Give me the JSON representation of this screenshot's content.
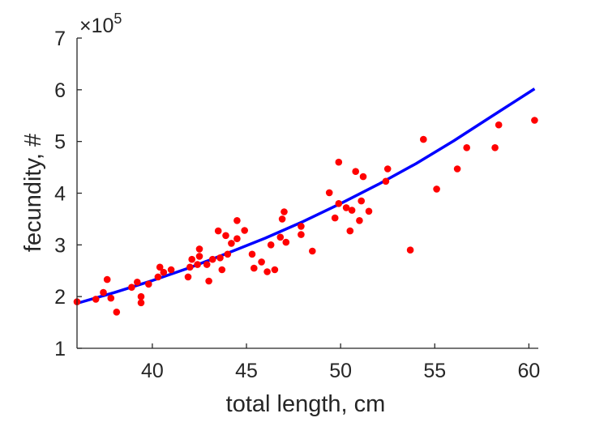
{
  "chart_data": {
    "type": "scatter",
    "title": "",
    "xlabel": "total length, cm",
    "ylabel": "fecundity, #",
    "xlim": [
      36,
      60.5
    ],
    "ylim": [
      1,
      7
    ],
    "xticks": [
      40,
      45,
      50,
      55,
      60
    ],
    "yticks": [
      1,
      2,
      3,
      4,
      5,
      6,
      7
    ],
    "y_multiplier": "×10",
    "y_multiplier_exponent": "5",
    "grid": false,
    "series": [
      {
        "kind": "scatter",
        "color": "#ff0000",
        "points": [
          [
            36.0,
            1.9
          ],
          [
            37.0,
            1.95
          ],
          [
            37.4,
            2.08
          ],
          [
            37.6,
            2.33
          ],
          [
            37.8,
            1.97
          ],
          [
            38.1,
            1.7
          ],
          [
            38.9,
            2.18
          ],
          [
            39.2,
            2.28
          ],
          [
            39.4,
            2.0
          ],
          [
            39.4,
            1.88
          ],
          [
            39.8,
            2.24
          ],
          [
            40.3,
            2.38
          ],
          [
            40.4,
            2.57
          ],
          [
            40.6,
            2.47
          ],
          [
            41.0,
            2.52
          ],
          [
            41.9,
            2.38
          ],
          [
            42.0,
            2.57
          ],
          [
            42.1,
            2.72
          ],
          [
            42.4,
            2.62
          ],
          [
            42.5,
            2.78
          ],
          [
            42.5,
            2.92
          ],
          [
            42.9,
            2.62
          ],
          [
            43.0,
            2.3
          ],
          [
            43.2,
            2.72
          ],
          [
            43.5,
            3.27
          ],
          [
            43.6,
            2.75
          ],
          [
            43.7,
            2.52
          ],
          [
            43.9,
            3.18
          ],
          [
            44.0,
            2.82
          ],
          [
            44.2,
            3.03
          ],
          [
            44.5,
            3.47
          ],
          [
            44.5,
            3.12
          ],
          [
            44.9,
            3.28
          ],
          [
            45.3,
            2.82
          ],
          [
            45.4,
            2.55
          ],
          [
            45.8,
            2.67
          ],
          [
            46.1,
            2.48
          ],
          [
            46.3,
            3.0
          ],
          [
            46.5,
            2.52
          ],
          [
            46.8,
            3.15
          ],
          [
            46.9,
            3.5
          ],
          [
            47.0,
            3.64
          ],
          [
            47.1,
            3.05
          ],
          [
            47.9,
            3.36
          ],
          [
            47.9,
            3.2
          ],
          [
            48.5,
            2.88
          ],
          [
            49.4,
            4.01
          ],
          [
            49.7,
            3.52
          ],
          [
            49.9,
            3.8
          ],
          [
            49.9,
            4.6
          ],
          [
            50.3,
            3.72
          ],
          [
            50.5,
            3.27
          ],
          [
            50.6,
            3.67
          ],
          [
            50.8,
            4.42
          ],
          [
            51.0,
            3.47
          ],
          [
            51.1,
            3.85
          ],
          [
            51.2,
            4.32
          ],
          [
            51.5,
            3.65
          ],
          [
            52.4,
            4.23
          ],
          [
            52.5,
            4.47
          ],
          [
            53.7,
            2.9
          ],
          [
            54.4,
            5.04
          ],
          [
            55.1,
            4.08
          ],
          [
            56.2,
            4.47
          ],
          [
            56.7,
            4.88
          ],
          [
            58.2,
            4.88
          ],
          [
            58.4,
            5.32
          ],
          [
            60.3,
            5.41
          ]
        ]
      },
      {
        "kind": "line",
        "color": "#0000ff",
        "points": [
          [
            36.0,
            1.87
          ],
          [
            38.0,
            2.08
          ],
          [
            40.0,
            2.31
          ],
          [
            42.0,
            2.56
          ],
          [
            44.0,
            2.84
          ],
          [
            46.0,
            3.13
          ],
          [
            48.0,
            3.45
          ],
          [
            50.0,
            3.8
          ],
          [
            52.0,
            4.17
          ],
          [
            54.0,
            4.57
          ],
          [
            56.0,
            5.01
          ],
          [
            58.0,
            5.48
          ],
          [
            60.3,
            6.02
          ]
        ]
      }
    ]
  }
}
